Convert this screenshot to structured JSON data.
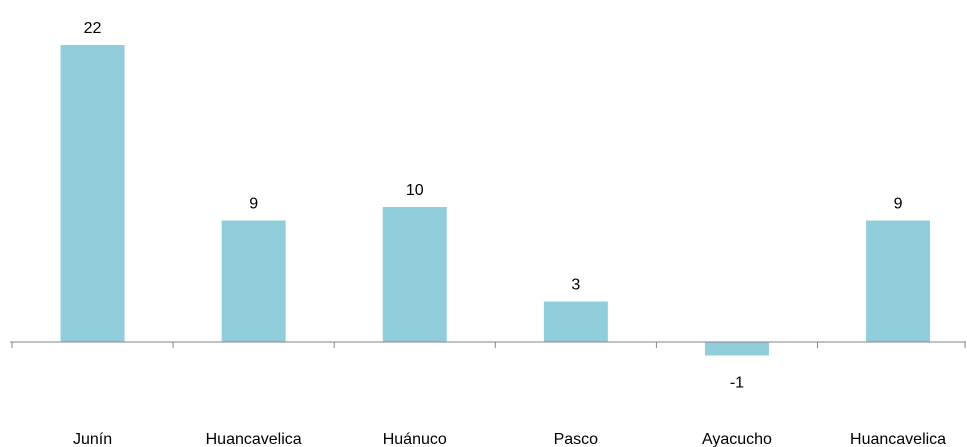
{
  "chart_data": {
    "type": "bar",
    "categories": [
      "Junín",
      "Huancavelica",
      "Huánuco",
      "Pasco",
      "Ayacucho",
      "Huancavelica"
    ],
    "values": [
      22,
      9,
      10,
      3,
      -1,
      9
    ],
    "data_labels": [
      "22",
      "9",
      "10",
      "3",
      "-1",
      "9"
    ],
    "title": "",
    "xlabel": "",
    "ylabel": "",
    "ylim": [
      -1,
      22
    ],
    "grid": false,
    "legend": "none",
    "bar_color": "#92CDDC",
    "axis_color": "#868686"
  }
}
